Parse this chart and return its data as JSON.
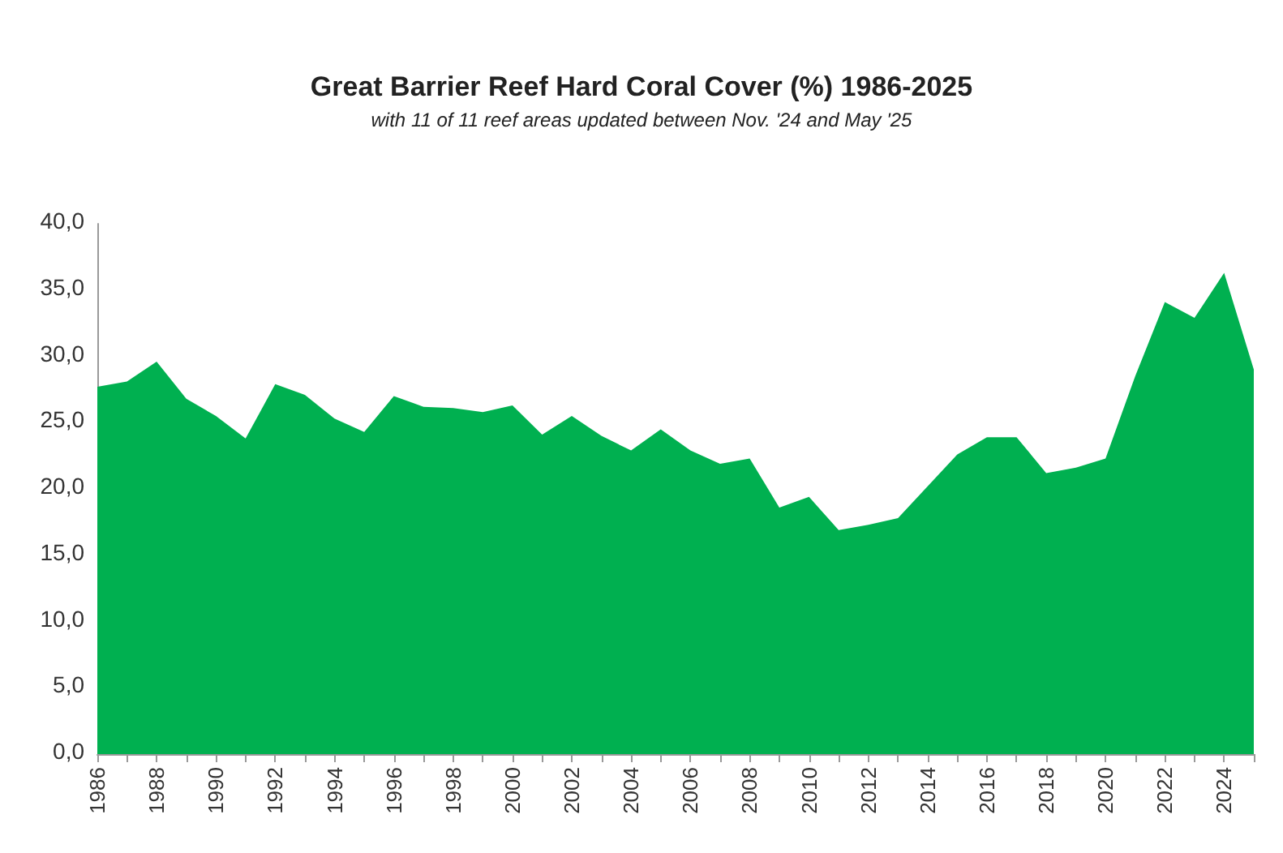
{
  "chart_data": {
    "type": "area",
    "title": "Great Barrier Reef Hard Coral Cover (%) 1986-2025",
    "subtitle": "with 11 of 11 reef areas updated between Nov. '24 and May '25",
    "categories": [
      "1986",
      null,
      "1988",
      null,
      "1990",
      null,
      "1992",
      null,
      "1994",
      null,
      "1996",
      null,
      "1998",
      null,
      "2000",
      null,
      "2002",
      null,
      "2004",
      null,
      "2006",
      null,
      "2008",
      null,
      "2010",
      null,
      "2012",
      null,
      "2014",
      null,
      "2016",
      null,
      "2018",
      null,
      "2020",
      null,
      "2022",
      null,
      "2024",
      null
    ],
    "series": [
      {
        "color": "#00b050",
        "values": [
          27.7,
          28.1,
          29.6,
          26.8,
          25.5,
          23.8,
          27.9,
          27.1,
          25.3,
          24.3,
          27.0,
          26.2,
          26.1,
          25.8,
          26.3,
          24.1,
          25.5,
          24.0,
          22.9,
          24.5,
          22.9,
          21.9,
          22.3,
          18.6,
          19.4,
          16.9,
          17.3,
          17.8,
          20.2,
          22.6,
          23.9,
          23.9,
          21.2,
          21.6,
          22.3,
          28.5,
          34.1,
          32.9,
          36.3,
          29.0
        ]
      }
    ],
    "ylim": [
      0,
      40
    ],
    "yticks": [
      {
        "value": 0,
        "label": "0,0"
      },
      {
        "value": 5,
        "label": "5,0"
      },
      {
        "value": 10,
        "label": "10,0"
      },
      {
        "value": 15,
        "label": "15,0"
      },
      {
        "value": 20,
        "label": "20,0"
      },
      {
        "value": 25,
        "label": "25,0"
      },
      {
        "value": 30,
        "label": "30,0"
      },
      {
        "value": 35,
        "label": "35,0"
      },
      {
        "value": 40,
        "label": "40,0"
      }
    ],
    "grid": false,
    "marker": "none"
  }
}
